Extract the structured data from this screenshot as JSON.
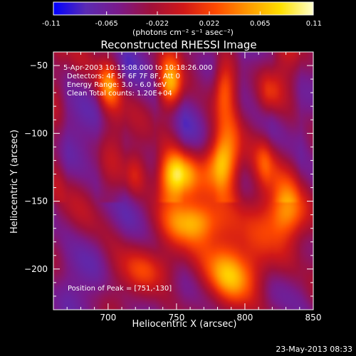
{
  "colorbar": {
    "tick_labels": [
      "-0.11",
      "-0.065",
      "-0.022",
      "0.022",
      "0.065",
      "0.11"
    ],
    "tick_values": [
      -0.11,
      -0.065,
      -0.022,
      0.022,
      0.065,
      0.11
    ],
    "range": [
      -0.11,
      0.11
    ],
    "units_label": "(photons cm⁻² s⁻¹ asec⁻²)",
    "colors": [
      "#0000ff",
      "#5b2bb3",
      "#7a1a8a",
      "#a0103a",
      "#d01818",
      "#ff4a00",
      "#ff9a00",
      "#ffe000",
      "#ffffcc"
    ]
  },
  "chart_data": {
    "type": "heatmap",
    "title": "Reconstructed RHESSI Image",
    "xlabel": "Heliocentric X (arcsec)",
    "ylabel": "Heliocentric Y (arcsec)",
    "xlim": [
      660,
      850
    ],
    "ylim": [
      -230,
      -40
    ],
    "x_ticks": [
      700,
      750,
      800,
      850
    ],
    "x_tick_labels": [
      "700",
      "750",
      "800",
      "850"
    ],
    "y_ticks": [
      -50,
      -100,
      -150,
      -200
    ],
    "y_tick_labels": [
      "−50",
      "−100",
      "−150",
      "−200"
    ],
    "annotations": [
      "5-Apr-2003 10:15:08.000 to 10:18:26.000",
      "Detectors: 4F 5F 6F 7F 8F, Att 0",
      "Energy Range: 3.0 - 6.0 keV",
      "Clean     Total counts: 1.20E+04"
    ],
    "peak_label": "Position of Peak = [751,-130]",
    "peak_position": [
      751,
      -130
    ],
    "sources": [
      {
        "x": 700,
        "y": -65,
        "amp": 0.07,
        "sx": 6,
        "sy": 12
      },
      {
        "x": 745,
        "y": -65,
        "amp": 0.08,
        "sx": 6,
        "sy": 12
      },
      {
        "x": 785,
        "y": -65,
        "amp": 0.07,
        "sx": 6,
        "sy": 14
      },
      {
        "x": 818,
        "y": -70,
        "amp": 0.05,
        "sx": 6,
        "sy": 12
      },
      {
        "x": 751,
        "y": -130,
        "amp": 0.11,
        "sx": 10,
        "sy": 12
      },
      {
        "x": 782,
        "y": -122,
        "amp": 0.1,
        "sx": 8,
        "sy": 14
      },
      {
        "x": 815,
        "y": -120,
        "amp": 0.06,
        "sx": 6,
        "sy": 14
      },
      {
        "x": 720,
        "y": -130,
        "amp": 0.05,
        "sx": 6,
        "sy": 12
      },
      {
        "x": 830,
        "y": -160,
        "amp": 0.05,
        "sx": 10,
        "sy": 12
      },
      {
        "x": 765,
        "y": -165,
        "amp": 0.06,
        "sx": 14,
        "sy": 10
      },
      {
        "x": 790,
        "y": -205,
        "amp": 0.045,
        "sx": 16,
        "sy": 12
      },
      {
        "x": 730,
        "y": -200,
        "amp": 0.035,
        "sx": 14,
        "sy": 10
      }
    ]
  },
  "footer": {
    "timestamp": "23-May-2013 08:33"
  }
}
